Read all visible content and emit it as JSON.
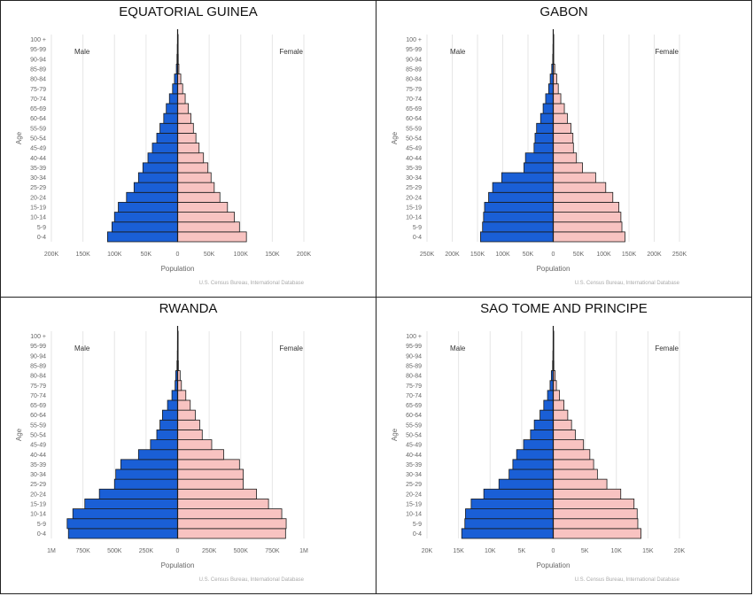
{
  "chart_data": [
    {
      "type": "bar",
      "title": "EQUATORIAL GUINEA",
      "xlabel": "Population",
      "ylabel": "Age",
      "source": "U.S. Census Bureau, International Database",
      "male_label": "Male",
      "female_label": "Female",
      "categories": [
        "0-4",
        "5-9",
        "10-14",
        "15-19",
        "20-24",
        "25-29",
        "30-34",
        "35-39",
        "40-44",
        "45-49",
        "50-54",
        "55-59",
        "60-64",
        "65-69",
        "70-74",
        "75-79",
        "80-84",
        "85-89",
        "90-94",
        "95-99",
        "100 +"
      ],
      "xlim": [
        -200000,
        200000
      ],
      "xticks": [
        -200000,
        -150000,
        -100000,
        -50000,
        0,
        50000,
        100000,
        150000,
        200000
      ],
      "xtick_labels": [
        "200K",
        "150K",
        "100K",
        "50K",
        "0",
        "50K",
        "100K",
        "150K",
        "200K"
      ],
      "series": [
        {
          "name": "Male",
          "color": "#1a5fd6",
          "values": [
            111000,
            104000,
            100000,
            94000,
            81000,
            69000,
            62000,
            55000,
            47000,
            40000,
            33000,
            28000,
            22000,
            18000,
            13000,
            8000,
            5000,
            2000,
            1000,
            500,
            200
          ]
        },
        {
          "name": "Female",
          "color": "#f8c3c1",
          "values": [
            109000,
            98000,
            90000,
            79000,
            67000,
            58000,
            53000,
            48000,
            41000,
            34000,
            29000,
            25000,
            21000,
            17000,
            12000,
            8000,
            5000,
            2000,
            1000,
            500,
            200
          ]
        }
      ]
    },
    {
      "type": "bar",
      "title": "GABON",
      "xlabel": "Population",
      "ylabel": "Age",
      "source": "U.S. Census Bureau, International Database",
      "male_label": "Male",
      "female_label": "Female",
      "categories": [
        "0-4",
        "5-9",
        "10-14",
        "15-19",
        "20-24",
        "25-29",
        "30-34",
        "35-39",
        "40-44",
        "45-49",
        "50-54",
        "55-59",
        "60-64",
        "65-69",
        "70-74",
        "75-79",
        "80-84",
        "85-89",
        "90-94",
        "95-99",
        "100 +"
      ],
      "xlim": [
        -250000,
        250000
      ],
      "xticks": [
        -250000,
        -200000,
        -150000,
        -100000,
        -50000,
        0,
        50000,
        100000,
        150000,
        200000,
        250000
      ],
      "xtick_labels": [
        "250K",
        "200K",
        "150K",
        "100K",
        "50K",
        "0",
        "50K",
        "100K",
        "150K",
        "200K",
        "250K"
      ],
      "series": [
        {
          "name": "Male",
          "color": "#1a5fd6",
          "values": [
            144000,
            140000,
            138000,
            136000,
            128000,
            120000,
            102000,
            58000,
            55000,
            38000,
            36000,
            33000,
            25000,
            20000,
            15000,
            9000,
            6000,
            3000,
            1000,
            500,
            200
          ]
        },
        {
          "name": "Female",
          "color": "#f8c3c1",
          "values": [
            142000,
            136000,
            134000,
            130000,
            118000,
            104000,
            84000,
            58000,
            46000,
            40000,
            39000,
            35000,
            28000,
            22000,
            15000,
            10000,
            7000,
            3000,
            1000,
            500,
            200
          ]
        }
      ]
    },
    {
      "type": "bar",
      "title": "RWANDA",
      "xlabel": "Population",
      "ylabel": "Age",
      "source": "U.S. Census Bureau, International Database",
      "male_label": "Male",
      "female_label": "Female",
      "categories": [
        "0-4",
        "5-9",
        "10-14",
        "15-19",
        "20-24",
        "25-29",
        "30-34",
        "35-39",
        "40-44",
        "45-49",
        "50-54",
        "55-59",
        "60-64",
        "65-69",
        "70-74",
        "75-79",
        "80-84",
        "85-89",
        "90-94",
        "95-99",
        "100 +"
      ],
      "xlim": [
        -1000000,
        1000000
      ],
      "xticks": [
        -1000000,
        -750000,
        -500000,
        -250000,
        0,
        250000,
        500000,
        750000,
        1000000
      ],
      "xtick_labels": [
        "1M",
        "750K",
        "500K",
        "250K",
        "0",
        "250K",
        "500K",
        "750K",
        "1M"
      ],
      "series": [
        {
          "name": "Male",
          "color": "#1a5fd6",
          "values": [
            865000,
            875000,
            830000,
            735000,
            620000,
            500000,
            490000,
            450000,
            310000,
            215000,
            165000,
            140000,
            120000,
            80000,
            45000,
            20000,
            15000,
            5000,
            2000,
            1000,
            500
          ]
        },
        {
          "name": "Female",
          "color": "#f8c3c1",
          "values": [
            855000,
            860000,
            825000,
            720000,
            625000,
            520000,
            520000,
            490000,
            365000,
            270000,
            195000,
            175000,
            140000,
            100000,
            65000,
            30000,
            20000,
            6000,
            2000,
            1000,
            500
          ]
        }
      ]
    },
    {
      "type": "bar",
      "title": "SAO TOME AND PRINCIPE",
      "xlabel": "Population",
      "ylabel": "Age",
      "source": "U.S. Census Bureau, International Database",
      "male_label": "Male",
      "female_label": "Female",
      "categories": [
        "0-4",
        "5-9",
        "10-14",
        "15-19",
        "20-24",
        "25-29",
        "30-34",
        "35-39",
        "40-44",
        "45-49",
        "50-54",
        "55-59",
        "60-64",
        "65-69",
        "70-74",
        "75-79",
        "80-84",
        "85-89",
        "90-94",
        "95-99",
        "100 +"
      ],
      "xlim": [
        -20000,
        20000
      ],
      "xticks": [
        -20000,
        -15000,
        -10000,
        -5000,
        0,
        5000,
        10000,
        15000,
        20000
      ],
      "xtick_labels": [
        "20K",
        "15K",
        "10K",
        "5K",
        "0",
        "5K",
        "10K",
        "15K",
        "20K"
      ],
      "series": [
        {
          "name": "Male",
          "color": "#1a5fd6",
          "values": [
            14500,
            14000,
            13900,
            13000,
            11000,
            8600,
            7000,
            6400,
            5800,
            4700,
            3600,
            3000,
            2100,
            1500,
            900,
            500,
            300,
            100,
            50,
            20,
            10
          ]
        },
        {
          "name": "Female",
          "color": "#f8c3c1",
          "values": [
            13900,
            13400,
            13300,
            12800,
            10700,
            8500,
            7000,
            6400,
            5800,
            4800,
            3500,
            2900,
            2300,
            1700,
            1000,
            500,
            300,
            100,
            50,
            20,
            10
          ]
        }
      ]
    }
  ]
}
